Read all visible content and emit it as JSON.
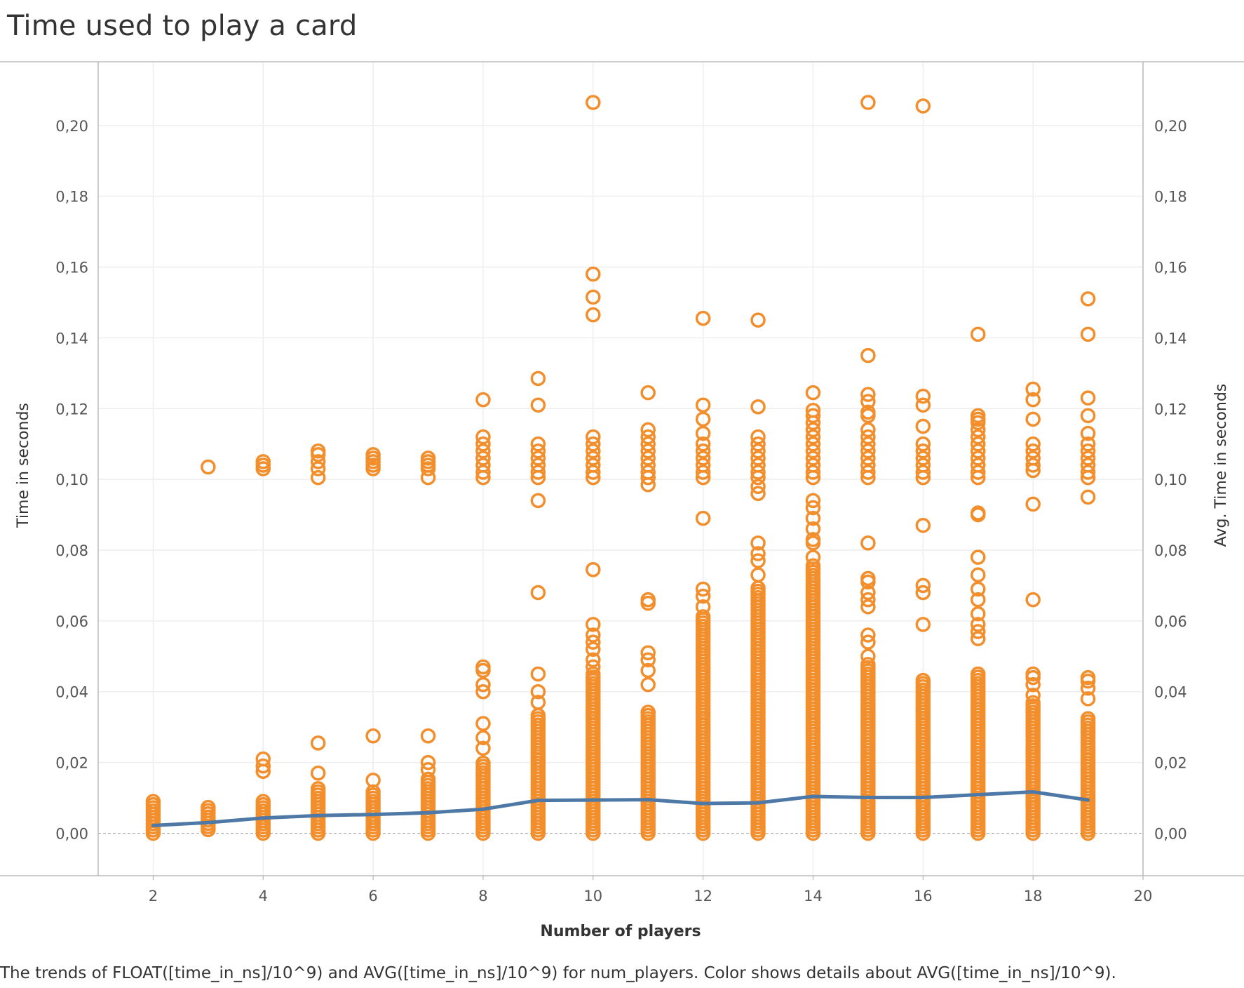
{
  "title": "Time used to play a card",
  "caption": "The trends of FLOAT([time_in_ns]/10^9) and AVG([time_in_ns]/10^9) for num_players.  Color shows details about AVG([time_in_ns]/10^9).",
  "colors": {
    "points": "#f28e2b",
    "avg_line": "#4e79a7",
    "grid": "#eeeeee",
    "axis": "#bbbbbb"
  },
  "chart_data": {
    "type": "scatter",
    "xlabel": "Number of players",
    "ylabel": "Time in seconds",
    "ylabel_right": "Avg. Time in seconds",
    "xlim": [
      1,
      20
    ],
    "ylim": [
      -0.012,
      0.218
    ],
    "x_ticks": [
      2,
      4,
      6,
      8,
      10,
      12,
      14,
      16,
      18,
      20
    ],
    "y_ticks": [
      0.0,
      0.02,
      0.04,
      0.06,
      0.08,
      0.1,
      0.12,
      0.14,
      0.16,
      0.18,
      0.2
    ],
    "y_tick_labels": [
      "0,00",
      "0,02",
      "0,04",
      "0,06",
      "0,08",
      "0,10",
      "0,12",
      "0,14",
      "0,16",
      "0,18",
      "0,20"
    ],
    "grid": true,
    "series": [
      {
        "kind": "scatter",
        "points": [
          {
            "x": 2,
            "dense": [
              [
                0.0,
                0.009
              ]
            ]
          },
          {
            "x": 3,
            "dense": [
              [
                0.001,
                0.008
              ]
            ],
            "high": [
              0.1035
            ]
          },
          {
            "x": 4,
            "dense": [
              [
                0.0,
                0.009
              ]
            ],
            "mid": [
              0.0175,
              0.019,
              0.021
            ],
            "high": [
              0.103,
              0.104,
              0.105
            ]
          },
          {
            "x": 5,
            "dense": [
              [
                0.0,
                0.013
              ]
            ],
            "mid": [
              0.017,
              0.0255
            ],
            "high": [
              0.1005,
              0.103,
              0.105,
              0.107,
              0.108
            ]
          },
          {
            "x": 6,
            "dense": [
              [
                0.0,
                0.012
              ]
            ],
            "mid": [
              0.015,
              0.0275
            ],
            "high": [
              0.103,
              0.104,
              0.105,
              0.106,
              0.107
            ]
          },
          {
            "x": 7,
            "dense": [
              [
                0.0,
                0.016
              ]
            ],
            "mid": [
              0.018,
              0.02,
              0.0275
            ],
            "high": [
              0.1005,
              0.103,
              0.104,
              0.105,
              0.106
            ]
          },
          {
            "x": 8,
            "dense": [
              [
                0.0,
                0.02
              ]
            ],
            "mid": [
              0.024,
              0.027,
              0.031,
              0.04,
              0.042,
              0.046,
              0.047
            ],
            "high": [
              0.1005,
              0.102,
              0.104,
              0.106,
              0.108,
              0.11,
              0.112,
              0.1225
            ]
          },
          {
            "x": 9,
            "dense": [
              [
                0.0,
                0.034
              ]
            ],
            "mid": [
              0.037,
              0.04,
              0.045,
              0.068,
              0.094
            ],
            "high": [
              0.1005,
              0.102,
              0.104,
              0.106,
              0.108,
              0.11,
              0.121,
              0.1285
            ]
          },
          {
            "x": 10,
            "dense": [
              [
                0.0,
                0.045
              ]
            ],
            "mid": [
              0.047,
              0.049,
              0.052,
              0.054,
              0.056,
              0.059,
              0.0745
            ],
            "high": [
              0.1005,
              0.102,
              0.104,
              0.106,
              0.108,
              0.11,
              0.112,
              0.1465,
              0.1515,
              0.158,
              0.2065
            ]
          },
          {
            "x": 11,
            "dense": [
              [
                0.0,
                0.035
              ]
            ],
            "mid": [
              0.042,
              0.046,
              0.049,
              0.051,
              0.065,
              0.066,
              0.0985
            ],
            "high": [
              0.1005,
              0.102,
              0.104,
              0.106,
              0.108,
              0.11,
              0.112,
              0.114,
              0.1245
            ]
          },
          {
            "x": 12,
            "dense": [
              [
                0.0,
                0.062
              ]
            ],
            "mid": [
              0.064,
              0.067,
              0.069,
              0.089
            ],
            "high": [
              0.1005,
              0.102,
              0.104,
              0.106,
              0.108,
              0.11,
              0.113,
              0.117,
              0.121,
              0.1455
            ]
          },
          {
            "x": 13,
            "dense": [
              [
                0.0,
                0.07
              ]
            ],
            "mid": [
              0.073,
              0.077,
              0.079,
              0.082,
              0.096,
              0.098
            ],
            "high": [
              0.1005,
              0.102,
              0.104,
              0.106,
              0.108,
              0.11,
              0.112,
              0.1205,
              0.145
            ]
          },
          {
            "x": 14,
            "dense": [
              [
                0.0,
                0.076
              ]
            ],
            "mid": [
              0.078,
              0.082,
              0.083,
              0.086,
              0.089,
              0.092,
              0.094
            ],
            "high": [
              0.1005,
              0.102,
              0.104,
              0.106,
              0.108,
              0.11,
              0.112,
              0.114,
              0.116,
              0.118,
              0.1195,
              0.1245
            ]
          },
          {
            "x": 15,
            "dense": [
              [
                0.0,
                0.048
              ]
            ],
            "mid": [
              0.05,
              0.054,
              0.056,
              0.064,
              0.066,
              0.068,
              0.071,
              0.072,
              0.082
            ],
            "high": [
              0.1005,
              0.102,
              0.104,
              0.106,
              0.108,
              0.11,
              0.112,
              0.114,
              0.118,
              0.119,
              0.122,
              0.124,
              0.135,
              0.2065
            ]
          },
          {
            "x": 16,
            "dense": [
              [
                0.0,
                0.044
              ]
            ],
            "mid": [
              0.059,
              0.068,
              0.07,
              0.087
            ],
            "high": [
              0.1005,
              0.102,
              0.104,
              0.106,
              0.108,
              0.11,
              0.115,
              0.121,
              0.1235,
              0.2055
            ]
          },
          {
            "x": 17,
            "dense": [
              [
                0.0,
                0.045
              ]
            ],
            "mid": [
              0.055,
              0.057,
              0.059,
              0.062,
              0.066,
              0.069,
              0.073,
              0.078,
              0.09,
              0.0905
            ],
            "high": [
              0.1005,
              0.102,
              0.104,
              0.106,
              0.108,
              0.11,
              0.112,
              0.114,
              0.116,
              0.117,
              0.118,
              0.141
            ]
          },
          {
            "x": 18,
            "dense": [
              [
                0.0,
                0.037
              ]
            ],
            "mid": [
              0.039,
              0.042,
              0.044,
              0.045,
              0.066,
              0.093
            ],
            "high": [
              0.1025,
              0.104,
              0.106,
              0.108,
              0.11,
              0.117,
              0.1225,
              0.1255
            ]
          },
          {
            "x": 19,
            "dense": [
              [
                0.0,
                0.033
              ]
            ],
            "mid": [
              0.038,
              0.041,
              0.043,
              0.044,
              0.095
            ],
            "high": [
              0.1005,
              0.102,
              0.104,
              0.106,
              0.108,
              0.11,
              0.113,
              0.118,
              0.123,
              0.141,
              0.151
            ]
          }
        ]
      },
      {
        "kind": "line",
        "x": [
          2,
          3,
          4,
          5,
          6,
          7,
          8,
          9,
          10,
          11,
          12,
          13,
          14,
          15,
          16,
          17,
          18,
          19
        ],
        "y": [
          0.0022,
          0.003,
          0.0043,
          0.005,
          0.0053,
          0.0058,
          0.0068,
          0.0093,
          0.0094,
          0.0095,
          0.0084,
          0.0086,
          0.0104,
          0.0101,
          0.0101,
          0.0109,
          0.0117,
          0.0094
        ]
      }
    ]
  }
}
